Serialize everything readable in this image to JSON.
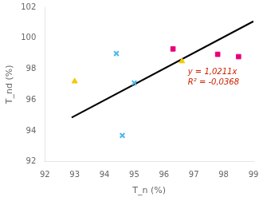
{
  "chart_data": {
    "type": "scatter",
    "title": "",
    "xlabel": "T_n (%)",
    "ylabel": "T_nd (%)",
    "xlim": [
      92,
      99
    ],
    "ylim": [
      92,
      102
    ],
    "xticks": [
      92,
      93,
      94,
      95,
      96,
      97,
      98,
      99
    ],
    "yticks": [
      92,
      94,
      96,
      98,
      100,
      102
    ],
    "grid": false,
    "series": [
      {
        "type": "scatter",
        "color": "#4db8e8",
        "marker": "x",
        "x": [
          94.4,
          95.0,
          94.6
        ],
        "values": [
          99.0,
          97.1,
          93.7
        ]
      },
      {
        "type": "scatter",
        "color": "#f5c800",
        "marker": "triangle",
        "x": [
          93.0,
          96.6
        ],
        "values": [
          97.2,
          98.5
        ]
      },
      {
        "type": "scatter",
        "color": "#e8007a",
        "marker": "square",
        "x": [
          96.3,
          97.8,
          98.5
        ],
        "values": [
          99.3,
          98.95,
          98.8
        ]
      },
      {
        "type": "line",
        "color": "#000000",
        "line_style": "solid",
        "x": [
          92.9,
          99.0
        ],
        "values": [
          94.86019,
          101.0889
        ]
      }
    ],
    "annotations": [
      {
        "text": [
          "y = 1,0211x",
          "R² = -0,0368"
        ],
        "x": 96.8,
        "y": 97.5,
        "color": "#cc2200"
      }
    ]
  }
}
